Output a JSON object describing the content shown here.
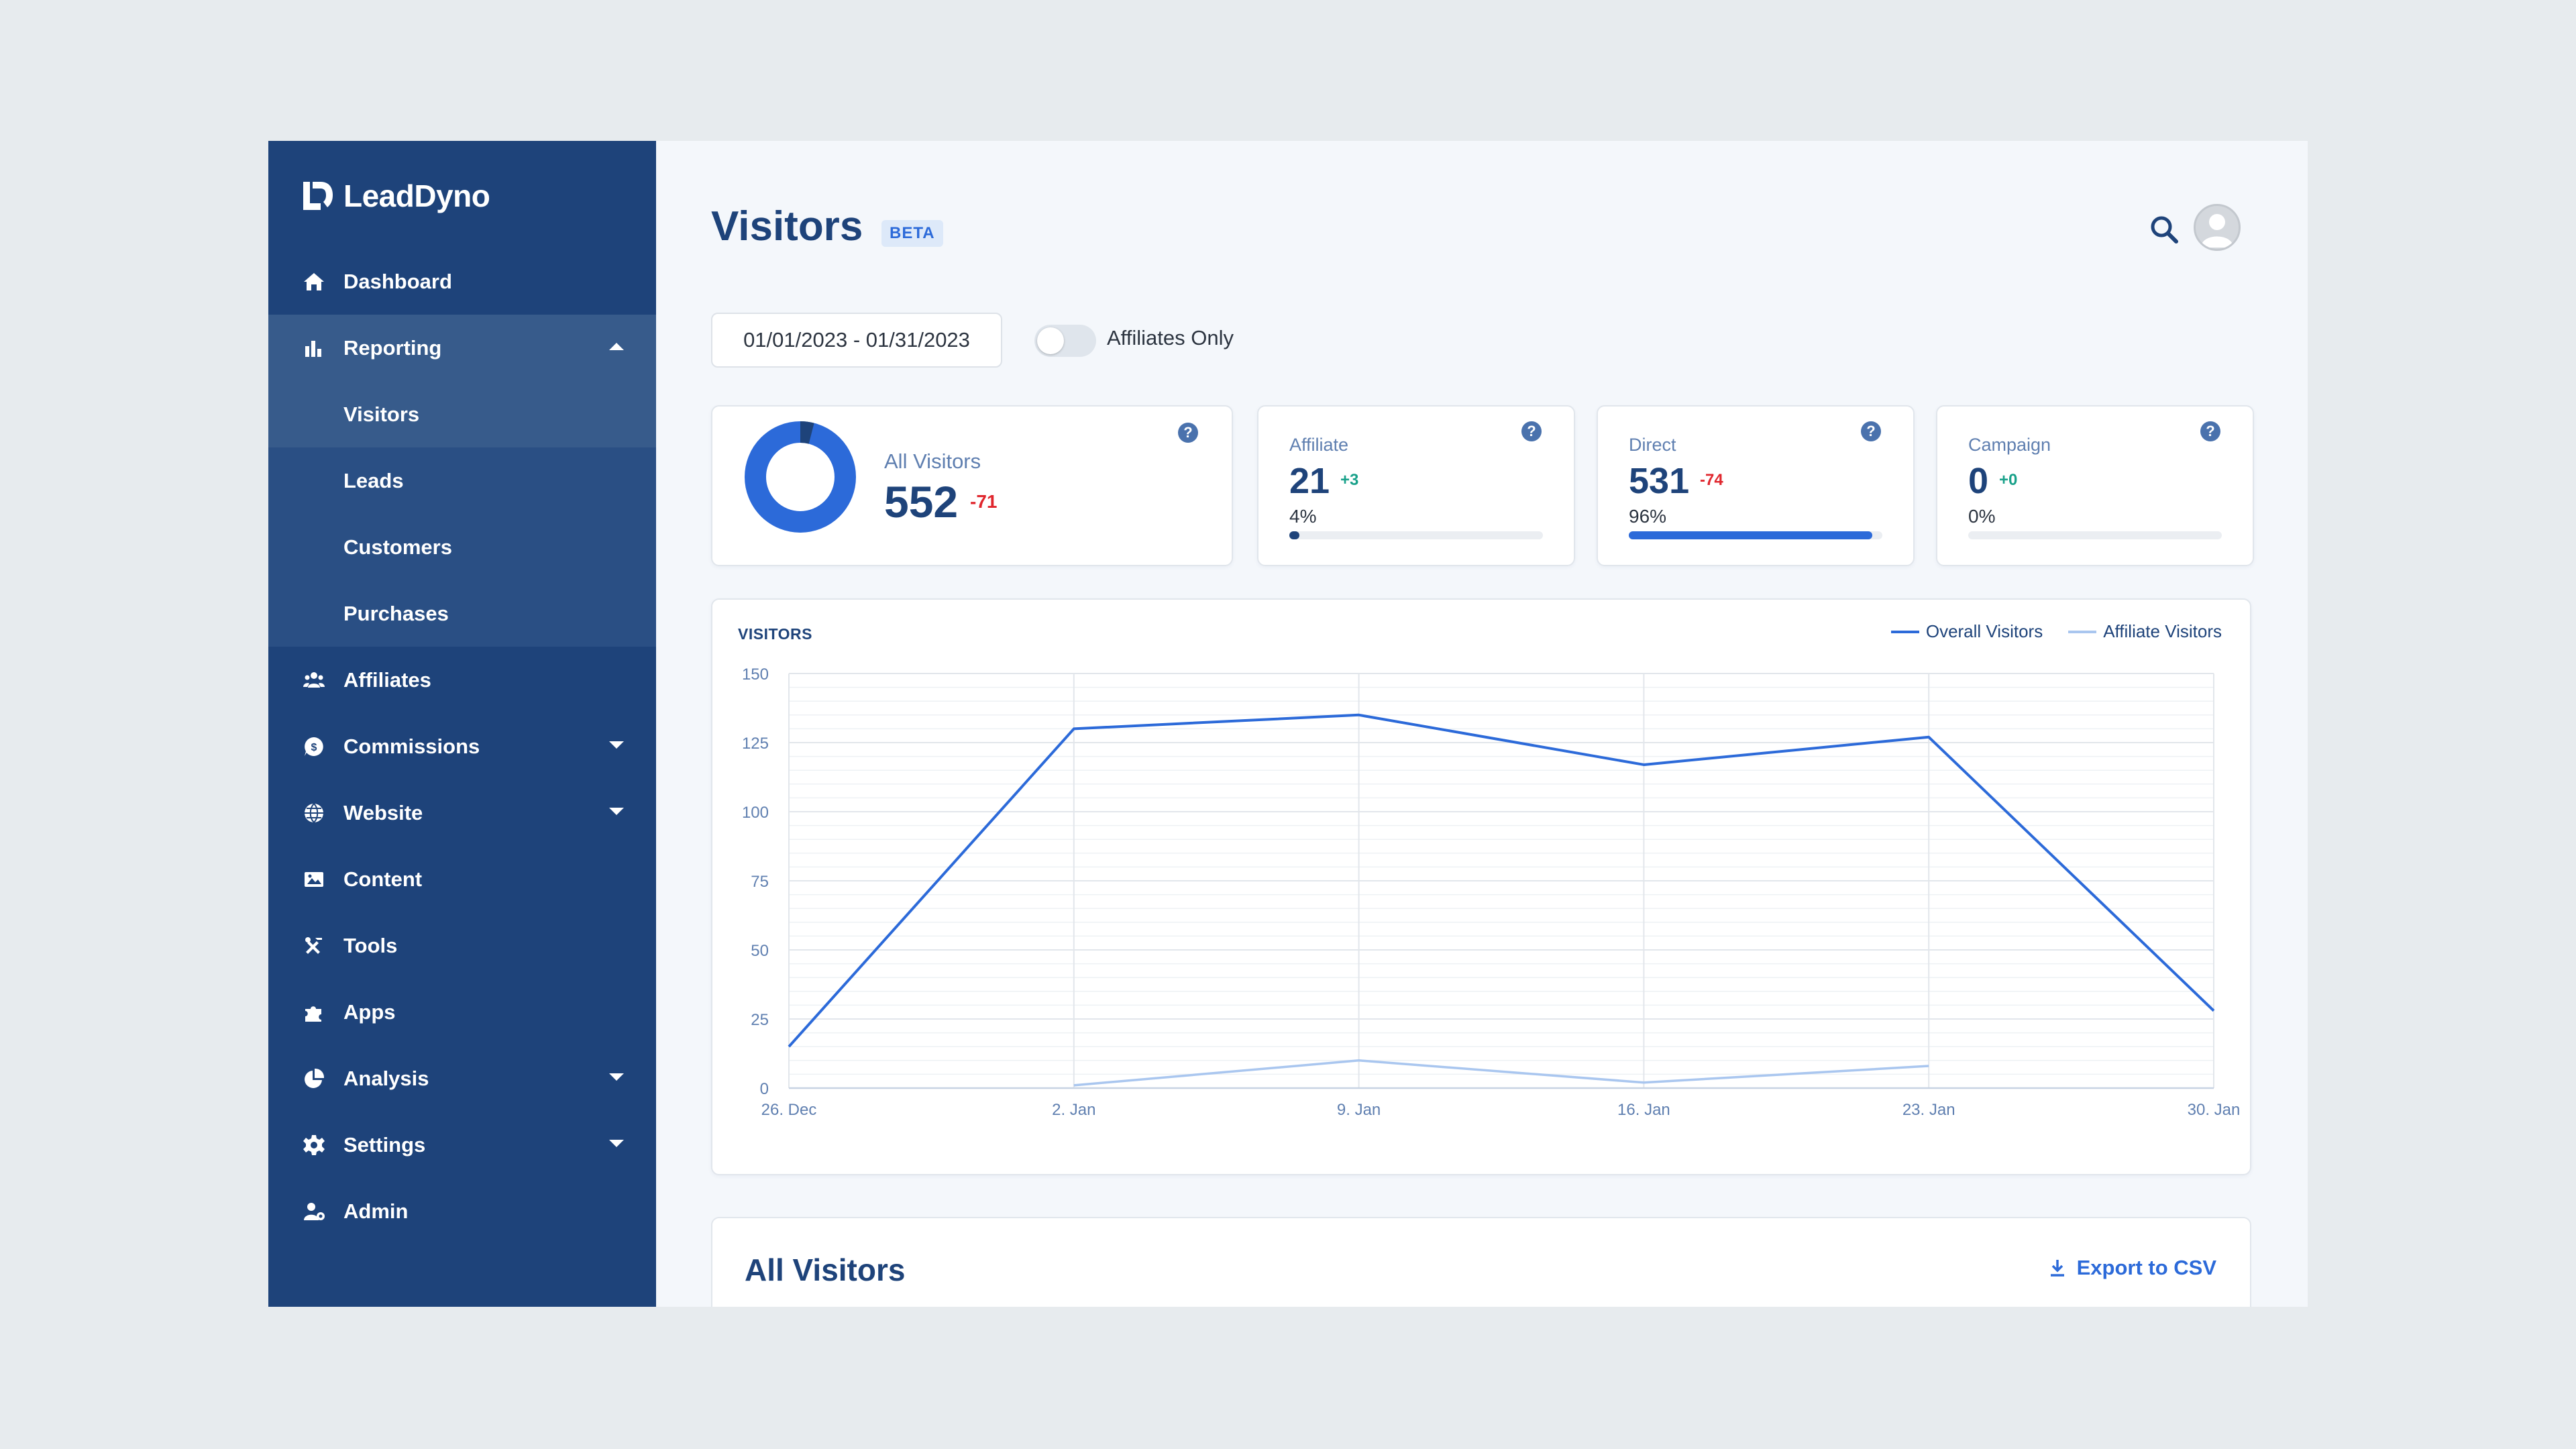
{
  "brand": {
    "name": "LeadDyno"
  },
  "sidebar": {
    "items": [
      {
        "label": "Dashboard",
        "icon": "home-icon"
      },
      {
        "label": "Reporting",
        "icon": "bar-chart-icon",
        "expanded": true,
        "children": [
          {
            "label": "Visitors",
            "active": true
          },
          {
            "label": "Leads"
          },
          {
            "label": "Customers"
          },
          {
            "label": "Purchases"
          }
        ]
      },
      {
        "label": "Affiliates",
        "icon": "users-icon"
      },
      {
        "label": "Commissions",
        "icon": "money-icon",
        "has_submenu": true
      },
      {
        "label": "Website",
        "icon": "globe-icon",
        "has_submenu": true
      },
      {
        "label": "Content",
        "icon": "image-icon"
      },
      {
        "label": "Tools",
        "icon": "tools-icon"
      },
      {
        "label": "Apps",
        "icon": "puzzle-icon"
      },
      {
        "label": "Analysis",
        "icon": "pie-chart-icon",
        "has_submenu": true
      },
      {
        "label": "Settings",
        "icon": "gear-icon",
        "has_submenu": true
      },
      {
        "label": "Admin",
        "icon": "user-gear-icon"
      }
    ]
  },
  "header": {
    "title": "Visitors",
    "badge": "BETA"
  },
  "filters": {
    "date_range": "01/01/2023 - 01/31/2023",
    "affiliates_only_label": "Affiliates Only",
    "affiliates_only": false
  },
  "stats": {
    "all_visitors": {
      "label": "All Visitors",
      "value": "552",
      "delta": "-71",
      "affiliate_share": 0.04
    },
    "affiliate": {
      "label": "Affiliate",
      "value": "21",
      "delta": "+3",
      "percent": "4%",
      "fraction": 0.04
    },
    "direct": {
      "label": "Direct",
      "value": "531",
      "delta": "-74",
      "percent": "96%",
      "fraction": 0.96
    },
    "campaign": {
      "label": "Campaign",
      "value": "0",
      "delta": "+0",
      "percent": "0%",
      "fraction": 0.0
    }
  },
  "chart_data": {
    "type": "line",
    "title": "VISITORS",
    "x": [
      "26. Dec",
      "2. Jan",
      "9. Jan",
      "16. Jan",
      "23. Jan",
      "30. Jan"
    ],
    "ylim": [
      0,
      150
    ],
    "yticks": [
      0,
      25,
      50,
      75,
      100,
      125,
      150
    ],
    "grid": true,
    "legend_position": "top-right",
    "series": [
      {
        "name": "Overall Visitors",
        "color": "#2c6ad9",
        "values": [
          15,
          130,
          135,
          117,
          127,
          28
        ]
      },
      {
        "name": "Affiliate Visitors",
        "color": "#a9c6ef",
        "values": [
          null,
          1,
          10,
          2,
          8,
          null
        ]
      }
    ]
  },
  "table": {
    "title": "All Visitors",
    "export_label": "Export to CSV"
  },
  "colors": {
    "sidebar": "#1e437a",
    "accent": "#2c6ad9",
    "negative": "#e0262d",
    "positive": "#19a18a"
  }
}
